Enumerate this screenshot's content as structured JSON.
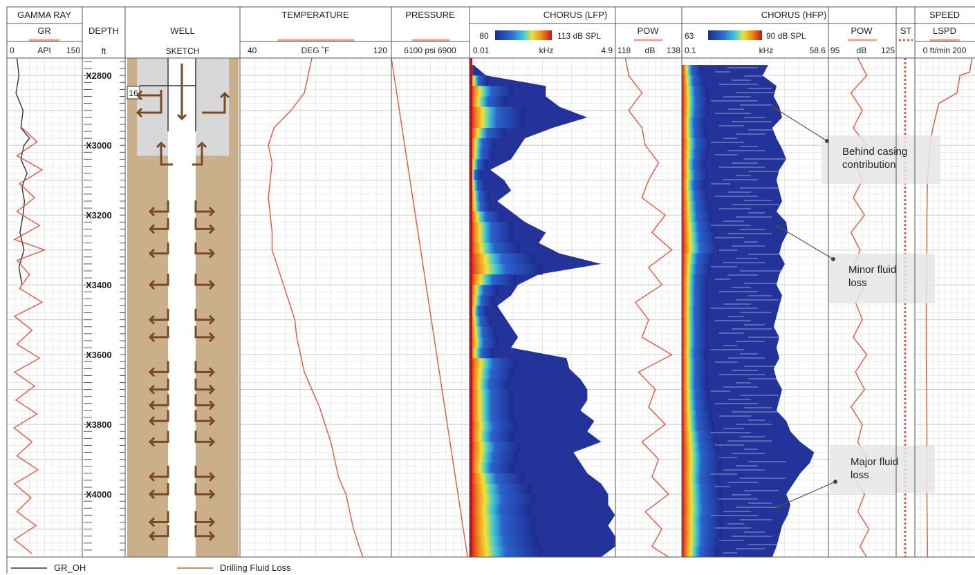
{
  "chart_data": {
    "type": "line",
    "depth": {
      "title": "DEPTH",
      "unit": "ft",
      "range": [
        2750,
        4180
      ],
      "labels": [
        "X2800",
        "X3000",
        "X3200",
        "X3400",
        "X3600",
        "X3800",
        "X4000"
      ],
      "label_values": [
        2800,
        3000,
        3200,
        3400,
        3600,
        3800,
        4000
      ]
    },
    "tracks": {
      "gamma": {
        "title": "GAMMA RAY",
        "curve": "GR",
        "unit": "API",
        "min": "0",
        "max": "150",
        "range": [
          0,
          150
        ]
      },
      "well": {
        "title": "WELL",
        "subtitle": "SKETCH",
        "casing_od": "16"
      },
      "temperature": {
        "title": "TEMPERATURE",
        "unit": "DEG ˚F",
        "min": "40",
        "max": "120",
        "range": [
          40,
          120
        ]
      },
      "pressure": {
        "title": "PRESSURE",
        "scale": "6100 psi 6900",
        "range": [
          6100,
          6900
        ]
      },
      "chorus_lfp": {
        "title": "CHORUS (LFP)",
        "scale_low": "80",
        "scale_high": "113 dB SPL",
        "freq_min": "0.01",
        "freq_unit": "kHz",
        "freq_max": "4.9"
      },
      "pow_lfp": {
        "title": "POW",
        "min": "118",
        "unit": "dB",
        "max": "138",
        "range": [
          118,
          138
        ]
      },
      "chorus_hfp": {
        "title": "CHORUS (HFP)",
        "scale_low": "63",
        "scale_high": "90 dB SPL",
        "freq_min": "0.1",
        "freq_unit": "kHz",
        "freq_max": "58.6"
      },
      "pow_hfp": {
        "title": "POW",
        "min": "95",
        "unit": "dB",
        "max": "125",
        "range": [
          95,
          125
        ]
      },
      "st": {
        "title": "ST"
      },
      "speed": {
        "title": "SPEED",
        "curve": "LSPD",
        "scale": "0 ft/min 200",
        "range": [
          0,
          200
        ]
      }
    },
    "series": [
      {
        "name": "GR_OH",
        "track": "gamma",
        "color": "#333333",
        "depth": [
          2750,
          2800,
          2850,
          2900,
          2950,
          2980,
          3000,
          3040,
          3080,
          3120,
          3160,
          3200,
          3250,
          3300,
          3350,
          3400
        ],
        "values": [
          20,
          24,
          18,
          32,
          28,
          45,
          34,
          28,
          40,
          30,
          35,
          32,
          26,
          34,
          24,
          30
        ]
      },
      {
        "name": "Drilling Fluid Loss",
        "track": "gamma",
        "color": "#e8553d",
        "depth": [
          2950,
          2990,
          3030,
          3070,
          3110,
          3150,
          3190,
          3230,
          3270,
          3300,
          3330,
          3370,
          3410,
          3450,
          3490,
          3530,
          3570,
          3610,
          3650,
          3690,
          3730,
          3770,
          3810,
          3850,
          3890,
          3930,
          3970,
          4010,
          4050,
          4090,
          4130,
          4170
        ],
        "values": [
          30,
          60,
          20,
          70,
          25,
          55,
          20,
          65,
          15,
          75,
          20,
          45,
          25,
          70,
          15,
          50,
          20,
          65,
          15,
          55,
          18,
          60,
          14,
          50,
          20,
          62,
          15,
          48,
          20,
          58,
          15,
          50
        ]
      },
      {
        "name": "Temperature",
        "track": "temperature",
        "color": "#e8553d",
        "depth": [
          2750,
          2800,
          2850,
          2900,
          2950,
          3000,
          3050,
          3100,
          3150,
          3200,
          3250,
          3300,
          3350,
          3400,
          3450,
          3500,
          3550,
          3600,
          3650,
          3700,
          3750,
          3800,
          3850,
          3900,
          3950,
          4000,
          4050,
          4100,
          4150,
          4180
        ],
        "values": [
          78,
          76,
          74,
          67,
          58,
          55,
          57,
          56,
          55,
          56,
          57,
          57,
          60,
          63,
          66,
          69,
          70,
          72,
          74,
          78,
          82,
          85,
          88,
          90,
          92,
          96,
          98,
          100,
          103,
          105
        ]
      },
      {
        "name": "Pressure",
        "track": "pressure",
        "color": "#e8553d",
        "depth": [
          2750,
          4180
        ],
        "values": [
          6100,
          6880
        ]
      },
      {
        "name": "POW LFP",
        "track": "pow_lfp",
        "color": "#e8553d",
        "depth": [
          2750,
          2800,
          2850,
          2900,
          2950,
          3000,
          3050,
          3100,
          3150,
          3200,
          3250,
          3300,
          3350,
          3400,
          3450,
          3500,
          3550,
          3600,
          3650,
          3700,
          3750,
          3800,
          3850,
          3900,
          3950,
          4000,
          4050,
          4100,
          4150,
          4180
        ],
        "values": [
          121,
          122,
          126,
          122,
          126,
          127,
          131,
          128,
          126,
          133,
          129,
          135,
          128,
          132,
          124,
          128,
          126,
          135,
          125,
          130,
          128,
          133,
          126,
          131,
          129,
          134,
          127,
          132,
          129,
          134
        ]
      },
      {
        "name": "POW HFP",
        "track": "pow_hfp",
        "color": "#e8553d",
        "depth": [
          2750,
          2800,
          2850,
          2900,
          2950,
          3000,
          3050,
          3100,
          3150,
          3200,
          3250,
          3300,
          3350,
          3400,
          3450,
          3500,
          3550,
          3600,
          3650,
          3700,
          3750,
          3800,
          3850,
          3900,
          3950,
          4000,
          4050,
          4100,
          4150,
          4180
        ],
        "values": [
          108,
          112,
          105,
          110,
          106,
          112,
          107,
          110,
          106,
          111,
          105,
          109,
          106,
          111,
          107,
          110,
          106,
          112,
          107,
          111,
          105,
          110,
          108,
          112,
          106,
          111,
          108,
          113,
          109,
          112
        ]
      },
      {
        "name": "LSPD",
        "track": "speed",
        "color": "#e8553d",
        "depth": [
          2750,
          2790,
          2800,
          2850,
          2880,
          2950,
          3000,
          3100,
          3200,
          3300,
          3400,
          3600,
          3800,
          4000,
          4150,
          4180
        ],
        "values": [
          190,
          182,
          150,
          140,
          80,
          60,
          50,
          42,
          40,
          40,
          38,
          38,
          40,
          40,
          42,
          42
        ]
      }
    ],
    "acoustic_lfp": {
      "depth": [
        2770,
        2800,
        2830,
        2860,
        2890,
        2920,
        2950,
        2980,
        3010,
        3040,
        3070,
        3100,
        3130,
        3160,
        3190,
        3220,
        3250,
        3280,
        3310,
        3340,
        3370,
        3400,
        3430,
        3460,
        3490,
        3520,
        3550,
        3580,
        3610,
        3640,
        3670,
        3700,
        3730,
        3760,
        3790,
        3820,
        3850,
        3880,
        3910,
        3940,
        3970,
        4000,
        4030,
        4060,
        4090,
        4120,
        4150,
        4180
      ],
      "extent": [
        0.03,
        0.12,
        0.55,
        0.55,
        0.65,
        0.85,
        0.6,
        0.4,
        0.35,
        0.3,
        0.15,
        0.25,
        0.3,
        0.2,
        0.3,
        0.4,
        0.55,
        0.5,
        0.65,
        0.95,
        0.5,
        0.35,
        0.3,
        0.2,
        0.25,
        0.3,
        0.35,
        0.3,
        0.7,
        0.72,
        0.8,
        0.85,
        0.85,
        0.8,
        0.9,
        0.85,
        0.95,
        0.75,
        0.8,
        0.85,
        0.95,
        1.0,
        1.0,
        1.05,
        1.0,
        1.05,
        1.05,
        0.95
      ],
      "intensity": [
        0.2,
        0.6,
        0.7,
        0.6,
        0.8,
        0.75,
        0.55,
        0.5,
        0.5,
        0.4,
        0.35,
        0.4,
        0.45,
        0.6,
        0.75,
        0.85,
        0.7,
        0.85,
        0.95,
        1.0,
        0.8,
        0.6,
        0.55,
        0.5,
        0.55,
        0.6,
        0.6,
        0.55,
        0.65,
        0.6,
        0.55,
        0.6,
        0.6,
        0.6,
        0.65,
        0.6,
        0.7,
        0.65,
        0.6,
        0.75,
        0.85,
        0.9,
        0.85,
        0.9,
        0.9,
        0.95,
        1.0,
        0.9
      ]
    },
    "acoustic_hfp": {
      "depth": [
        2770,
        2800,
        2830,
        2860,
        2890,
        2920,
        2950,
        2980,
        3010,
        3040,
        3070,
        3100,
        3130,
        3160,
        3190,
        3220,
        3250,
        3280,
        3310,
        3340,
        3370,
        3400,
        3430,
        3460,
        3490,
        3520,
        3550,
        3580,
        3610,
        3640,
        3670,
        3700,
        3730,
        3760,
        3790,
        3820,
        3850,
        3880,
        3910,
        3940,
        3970,
        4000,
        4030,
        4060,
        4090,
        4120,
        4150,
        4180
      ],
      "extent": [
        0.62,
        0.58,
        0.68,
        0.66,
        0.7,
        0.72,
        0.65,
        0.68,
        0.72,
        0.75,
        0.7,
        0.68,
        0.7,
        0.72,
        0.68,
        0.75,
        0.76,
        0.72,
        0.7,
        0.74,
        0.7,
        0.68,
        0.72,
        0.7,
        0.68,
        0.66,
        0.7,
        0.68,
        0.7,
        0.66,
        0.68,
        0.72,
        0.7,
        0.68,
        0.75,
        0.78,
        0.85,
        0.95,
        0.92,
        0.85,
        0.8,
        0.75,
        0.78,
        0.76,
        0.72,
        0.7,
        0.68,
        0.65
      ],
      "intensity": [
        0.5,
        0.6,
        0.6,
        0.65,
        0.6,
        0.55,
        0.6,
        0.65,
        0.6,
        0.55,
        0.6,
        0.55,
        0.6,
        0.65,
        0.7,
        0.75,
        0.8,
        0.85,
        0.7,
        0.65,
        0.6,
        0.6,
        0.6,
        0.58,
        0.6,
        0.62,
        0.6,
        0.58,
        0.6,
        0.62,
        0.6,
        0.62,
        0.65,
        0.7,
        0.72,
        0.8,
        0.85,
        0.9,
        0.88,
        0.85,
        0.9,
        0.92,
        0.95,
        0.9,
        0.92,
        0.9,
        0.85,
        0.8
      ]
    },
    "flow_arrows": {
      "depth": [
        3190,
        3240,
        3310,
        3400,
        3500,
        3550,
        3650,
        3700,
        3745,
        3790,
        3850,
        3950,
        4000,
        4080,
        4120
      ]
    },
    "annotations": [
      {
        "text": "Behind casing contribution",
        "depth": 2910,
        "lines": [
          "Behind casing",
          "contribution"
        ]
      },
      {
        "text": "Minor fluid loss",
        "depth": 3280,
        "lines": [
          "Minor fluid",
          "loss"
        ]
      },
      {
        "text": "Major fluid loss",
        "depth": 4060,
        "lines": [
          "Major fluid",
          "loss"
        ]
      }
    ],
    "legend": [
      {
        "name": "GR_OH",
        "color": "#333333"
      },
      {
        "name": "Drilling Fluid Loss",
        "color": "#e8553d"
      }
    ],
    "grid": true
  }
}
